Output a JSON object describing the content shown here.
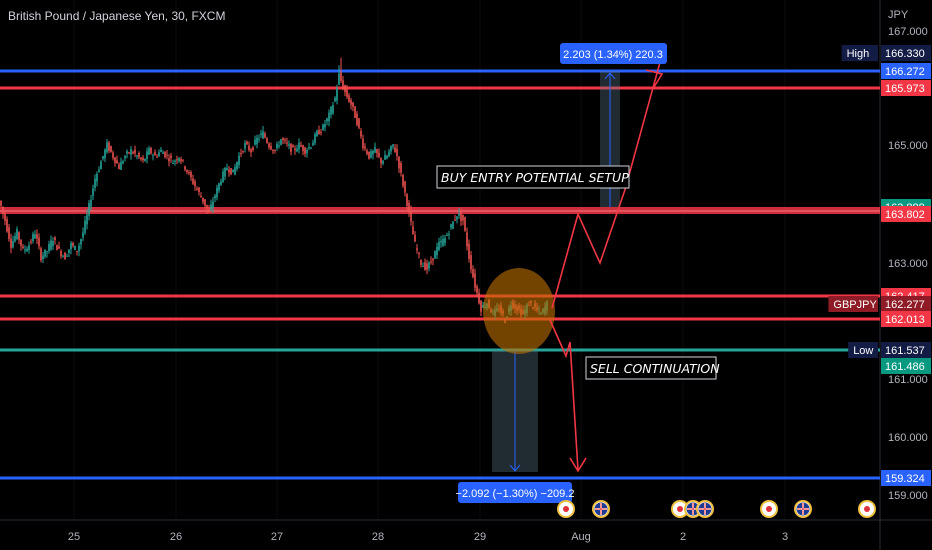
{
  "header": {
    "title": "British Pound / Japanese Yen, 30, FXCM"
  },
  "colors": {
    "background": "#000000",
    "up_candle": "#26a69a",
    "down_candle": "#ef5350",
    "red_line": "#f23645",
    "blue_line": "#2962ff",
    "teal_line": "#26a69a",
    "tag_blue": "#2962ff",
    "tag_red": "#f23645",
    "tag_teal": "#089981",
    "tag_navy": "#131c45",
    "tag_darkred": "#8e1b25"
  },
  "chart_data": {
    "type": "candlestick",
    "title": "British Pound / Japanese Yen, 30, FXCM",
    "currency_label": "JPY",
    "x_ticks": [
      "25",
      "26",
      "27",
      "28",
      "29",
      "Aug",
      "2",
      "3"
    ],
    "y_ticks": [
      "167.000",
      "165.000",
      "163.000",
      "161.000",
      "160.000",
      "159.000"
    ],
    "price_tags": [
      {
        "label": "High",
        "value": "166.330",
        "kind": "navy"
      },
      {
        "label": "",
        "value": "166.272",
        "kind": "blue"
      },
      {
        "label": "",
        "value": "165.973",
        "kind": "red"
      },
      {
        "label": "",
        "value": "163.888",
        "kind": "teal"
      },
      {
        "label": "",
        "value": "163.802",
        "kind": "red"
      },
      {
        "label": "",
        "value": "162.417",
        "kind": "red"
      },
      {
        "label": "GBPJPY",
        "value": "162.277",
        "kind": "darkred"
      },
      {
        "label": "",
        "value": "162.013",
        "kind": "red"
      },
      {
        "label": "Low",
        "value": "161.537",
        "kind": "navy"
      },
      {
        "label": "",
        "value": "161.486",
        "kind": "teal"
      },
      {
        "label": "",
        "value": "159.324",
        "kind": "blue"
      }
    ],
    "horizontal_lines": [
      {
        "price": 166.272,
        "color": "blue"
      },
      {
        "price": 165.973,
        "color": "red"
      },
      {
        "price": 162.417,
        "color": "red"
      },
      {
        "price": 162.013,
        "color": "red"
      },
      {
        "price": 161.537,
        "color": "teal"
      },
      {
        "price": 159.324,
        "color": "blue"
      }
    ],
    "zone": {
      "from": 163.802,
      "to": 163.888,
      "color": "red"
    },
    "annotations": {
      "buy": "BUY ENTRY POTENTIAL SETUP",
      "sell": "SELL CONTINUATION",
      "measure_up": "2.203 (1.34%) 220.3",
      "measure_down": "−2.092 (−1.30%) −209.2"
    },
    "price_path": [
      [
        0,
        164.0
      ],
      [
        6,
        163.7
      ],
      [
        12,
        163.3
      ],
      [
        18,
        163.5
      ],
      [
        24,
        163.2
      ],
      [
        30,
        163.3
      ],
      [
        36,
        163.5
      ],
      [
        42,
        163.1
      ],
      [
        48,
        163.2
      ],
      [
        54,
        163.4
      ],
      [
        60,
        163.2
      ],
      [
        66,
        163.1
      ],
      [
        72,
        163.3
      ],
      [
        78,
        163.2
      ],
      [
        84,
        163.5
      ],
      [
        90,
        163.9
      ],
      [
        96,
        164.4
      ],
      [
        102,
        164.7
      ],
      [
        108,
        165.0
      ],
      [
        114,
        164.8
      ],
      [
        120,
        164.6
      ],
      [
        126,
        164.8
      ],
      [
        132,
        164.9
      ],
      [
        138,
        164.8
      ],
      [
        144,
        164.7
      ],
      [
        150,
        164.9
      ],
      [
        156,
        164.8
      ],
      [
        162,
        164.9
      ],
      [
        168,
        164.8
      ],
      [
        174,
        164.7
      ],
      [
        180,
        164.8
      ],
      [
        186,
        164.6
      ],
      [
        192,
        164.4
      ],
      [
        198,
        164.2
      ],
      [
        204,
        164.0
      ],
      [
        210,
        163.8
      ],
      [
        216,
        164.1
      ],
      [
        222,
        164.4
      ],
      [
        228,
        164.6
      ],
      [
        234,
        164.5
      ],
      [
        240,
        164.8
      ],
      [
        246,
        165.0
      ],
      [
        252,
        164.9
      ],
      [
        258,
        165.1
      ],
      [
        264,
        165.2
      ],
      [
        270,
        165.0
      ],
      [
        276,
        164.9
      ],
      [
        282,
        165.1
      ],
      [
        288,
        165.0
      ],
      [
        294,
        164.9
      ],
      [
        300,
        165.0
      ],
      [
        306,
        164.9
      ],
      [
        312,
        165.0
      ],
      [
        318,
        165.2
      ],
      [
        324,
        165.3
      ],
      [
        330,
        165.5
      ],
      [
        336,
        165.8
      ],
      [
        340,
        166.2
      ],
      [
        346,
        165.9
      ],
      [
        352,
        165.7
      ],
      [
        358,
        165.4
      ],
      [
        364,
        165.0
      ],
      [
        370,
        164.8
      ],
      [
        376,
        164.9
      ],
      [
        382,
        164.7
      ],
      [
        388,
        164.8
      ],
      [
        394,
        165.0
      ],
      [
        398,
        164.8
      ],
      [
        404,
        164.3
      ],
      [
        410,
        163.8
      ],
      [
        416,
        163.3
      ],
      [
        422,
        163.0
      ],
      [
        428,
        162.9
      ],
      [
        434,
        163.1
      ],
      [
        440,
        163.3
      ],
      [
        446,
        163.4
      ],
      [
        452,
        163.6
      ],
      [
        458,
        163.8
      ],
      [
        464,
        163.7
      ],
      [
        470,
        163.1
      ],
      [
        476,
        162.6
      ],
      [
        482,
        162.2
      ],
      [
        488,
        162.3
      ],
      [
        494,
        162.1
      ],
      [
        500,
        162.2
      ],
      [
        506,
        162.0
      ],
      [
        512,
        162.3
      ],
      [
        518,
        162.2
      ],
      [
        524,
        162.1
      ],
      [
        530,
        162.3
      ],
      [
        536,
        162.2
      ],
      [
        542,
        162.1
      ],
      [
        548,
        162.277
      ]
    ],
    "projection_path": [
      [
        552,
        162.2
      ],
      [
        578,
        163.8
      ],
      [
        600,
        163.0
      ],
      [
        625,
        164.2
      ],
      [
        660,
        166.3
      ]
    ]
  }
}
